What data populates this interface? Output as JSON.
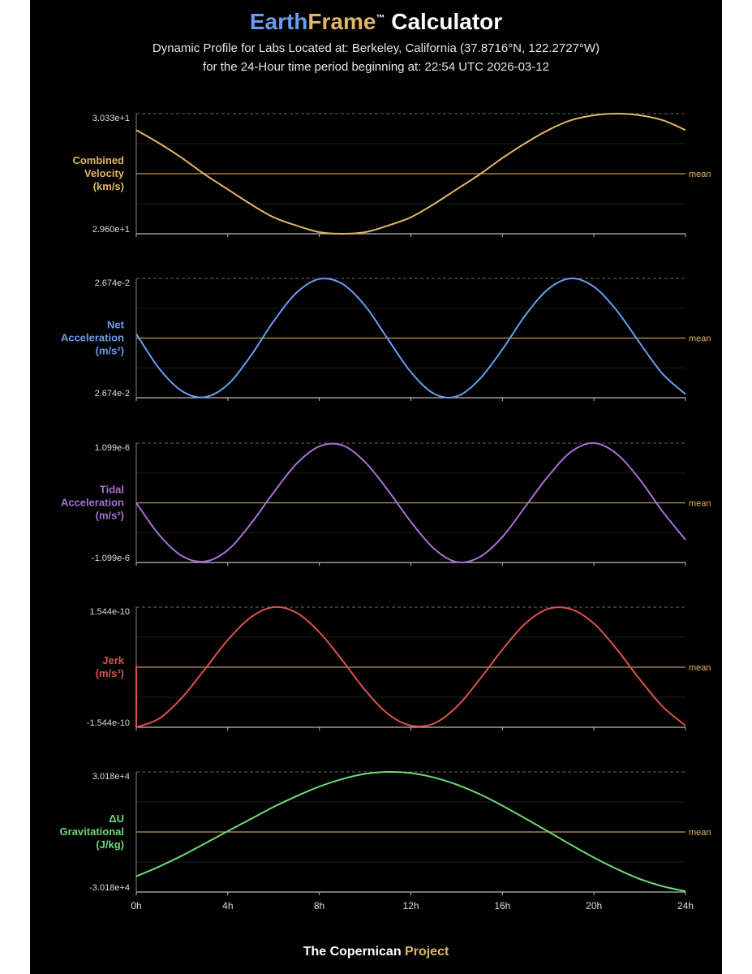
{
  "header": {
    "title_part1": "Earth",
    "title_part2": "Frame",
    "title_tm": "™",
    "title_part3": " Calculator",
    "subtitle_line1": "Dynamic Profile for Labs Located at: Berkeley, California (37.8716°N, 122.2727°W)",
    "subtitle_line2": "for the 24-Hour time period beginning at: 22:54 UTC  2026-03-12"
  },
  "colors": {
    "velocity": "#e2b665",
    "acceleration": "#6b9cf0",
    "tidal": "#a86fd6",
    "jerk": "#d9534f",
    "gravitational": "#6fd97a",
    "mean_line": "#e2b665",
    "axis": "#bbbbbb"
  },
  "chart_data": [
    {
      "type": "line",
      "label_lines": [
        "Combined",
        "Velocity",
        "(km/s)"
      ],
      "color_key": "velocity",
      "y_top_label": "3.033e+1",
      "y_bottom_label": "2.960e+1",
      "ylim": [
        29.6,
        30.33
      ],
      "mean_label": "mean",
      "x": [
        0,
        1,
        2,
        3,
        4,
        5,
        6,
        7,
        8,
        9,
        10,
        11,
        12,
        13,
        14,
        15,
        16,
        17,
        18,
        19,
        20,
        21,
        22,
        23,
        24
      ],
      "y": [
        30.23,
        30.15,
        30.06,
        29.96,
        29.87,
        29.78,
        29.7,
        29.65,
        29.61,
        29.6,
        29.61,
        29.65,
        29.7,
        29.78,
        29.87,
        29.96,
        30.06,
        30.15,
        30.23,
        30.29,
        30.32,
        30.33,
        30.32,
        30.29,
        30.23
      ]
    },
    {
      "type": "line",
      "label_lines": [
        "Net",
        "Acceleration",
        "(m/s²)"
      ],
      "color_key": "acceleration",
      "y_top_label": "2.674e-2",
      "y_bottom_label": "2.674e-2",
      "ylim": [
        -1,
        1
      ],
      "mean_label": "mean",
      "x": [
        0,
        1,
        2,
        3,
        4,
        5,
        6,
        7,
        8,
        9,
        10,
        11,
        12,
        13,
        14,
        15,
        16,
        17,
        18,
        19,
        20,
        21,
        22,
        23,
        24
      ],
      "y": [
        0.07,
        -0.51,
        -0.89,
        -0.99,
        -0.78,
        -0.3,
        0.28,
        0.76,
        0.99,
        0.91,
        0.54,
        -0.02,
        -0.57,
        -0.93,
        -0.98,
        -0.69,
        -0.19,
        0.38,
        0.82,
        1.0,
        0.86,
        0.46,
        -0.08,
        -0.6,
        -0.94
      ]
    },
    {
      "type": "line",
      "label_lines": [
        "Tidal",
        "Acceleration",
        "(m/s²)"
      ],
      "color_key": "tidal",
      "y_top_label": "1.099e-6",
      "y_bottom_label": "-1.099e-6",
      "ylim": [
        -1.099e-06,
        1.099e-06
      ],
      "mean_label": "mean",
      "x": [
        0,
        1,
        2,
        3,
        4,
        5,
        6,
        7,
        8,
        9,
        10,
        11,
        12,
        13,
        14,
        15,
        16,
        17,
        18,
        19,
        20,
        21,
        22,
        23,
        24
      ],
      "y": [
        0.0,
        -5.9e-07,
        -9.8e-07,
        -1.08e-06,
        -8.7e-07,
        -3.9e-07,
        1.9e-07,
        7.2e-07,
        1.04e-06,
        1.06e-06,
        7.5e-07,
        2.3e-07,
        -3.5e-07,
        -8.4e-07,
        -1.09e-06,
        -1e-06,
        -6.3e-07,
        -7e-08,
        4.9e-07,
        9.4e-07,
        1.1e-06,
        9e-07,
        4.3e-07,
        -1.6e-07,
        -6.8e-07
      ]
    },
    {
      "type": "line",
      "label_lines": [
        "Jerk",
        "(m/s³)"
      ],
      "color_key": "jerk",
      "y_top_label": "1.544e-10",
      "y_bottom_label": "-1.544e-10",
      "ylim": [
        -1.544e-10,
        1.544e-10
      ],
      "mean_label": "mean",
      "x": [
        0,
        1,
        2,
        3,
        4,
        5,
        6,
        7,
        8,
        9,
        10,
        11,
        12,
        13,
        14,
        15,
        16,
        17,
        18,
        19,
        20,
        21,
        22,
        23,
        24
      ],
      "y": [
        -1.544e-10,
        -1.32e-10,
        -7.8e-11,
        -5e-12,
        7e-11,
        1.28e-10,
        1.544e-10,
        1.4e-10,
        9e-11,
        1.8e-11,
        -5.9e-11,
        -1.2e-10,
        -1.5e-10,
        -1.45e-10,
        -1.02e-10,
        -3.2e-11,
        4.5e-11,
        1.12e-10,
        1.5e-10,
        1.49e-10,
        1.12e-10,
        4.6e-11,
        -3.1e-11,
        -1.01e-10,
        -1.5e-10
      ]
    },
    {
      "type": "line",
      "label_lines": [
        "ΔU",
        "Gravitational",
        "(J/kg)"
      ],
      "color_key": "gravitational",
      "y_top_label": "3.018e+4",
      "y_bottom_label": "-3.018e+4",
      "ylim": [
        -30180,
        30180
      ],
      "mean_label": "mean",
      "x": [
        0,
        1,
        2,
        3,
        4,
        5,
        6,
        7,
        8,
        9,
        10,
        11,
        12,
        13,
        14,
        15,
        16,
        17,
        18,
        19,
        20,
        21,
        22,
        23,
        24
      ],
      "y": [
        -22300,
        -17400,
        -11900,
        -5800,
        400,
        6500,
        12600,
        18000,
        22800,
        26600,
        29200,
        30180,
        29600,
        27400,
        23800,
        19000,
        13200,
        6800,
        200,
        -6500,
        -12900,
        -18600,
        -23600,
        -27300,
        -29800
      ]
    }
  ],
  "x_axis": {
    "ticks": [
      "0h",
      "4h",
      "8h",
      "12h",
      "16h",
      "20h",
      "24h"
    ]
  },
  "footer": {
    "part1": "The Copernican ",
    "part2": "Project"
  }
}
